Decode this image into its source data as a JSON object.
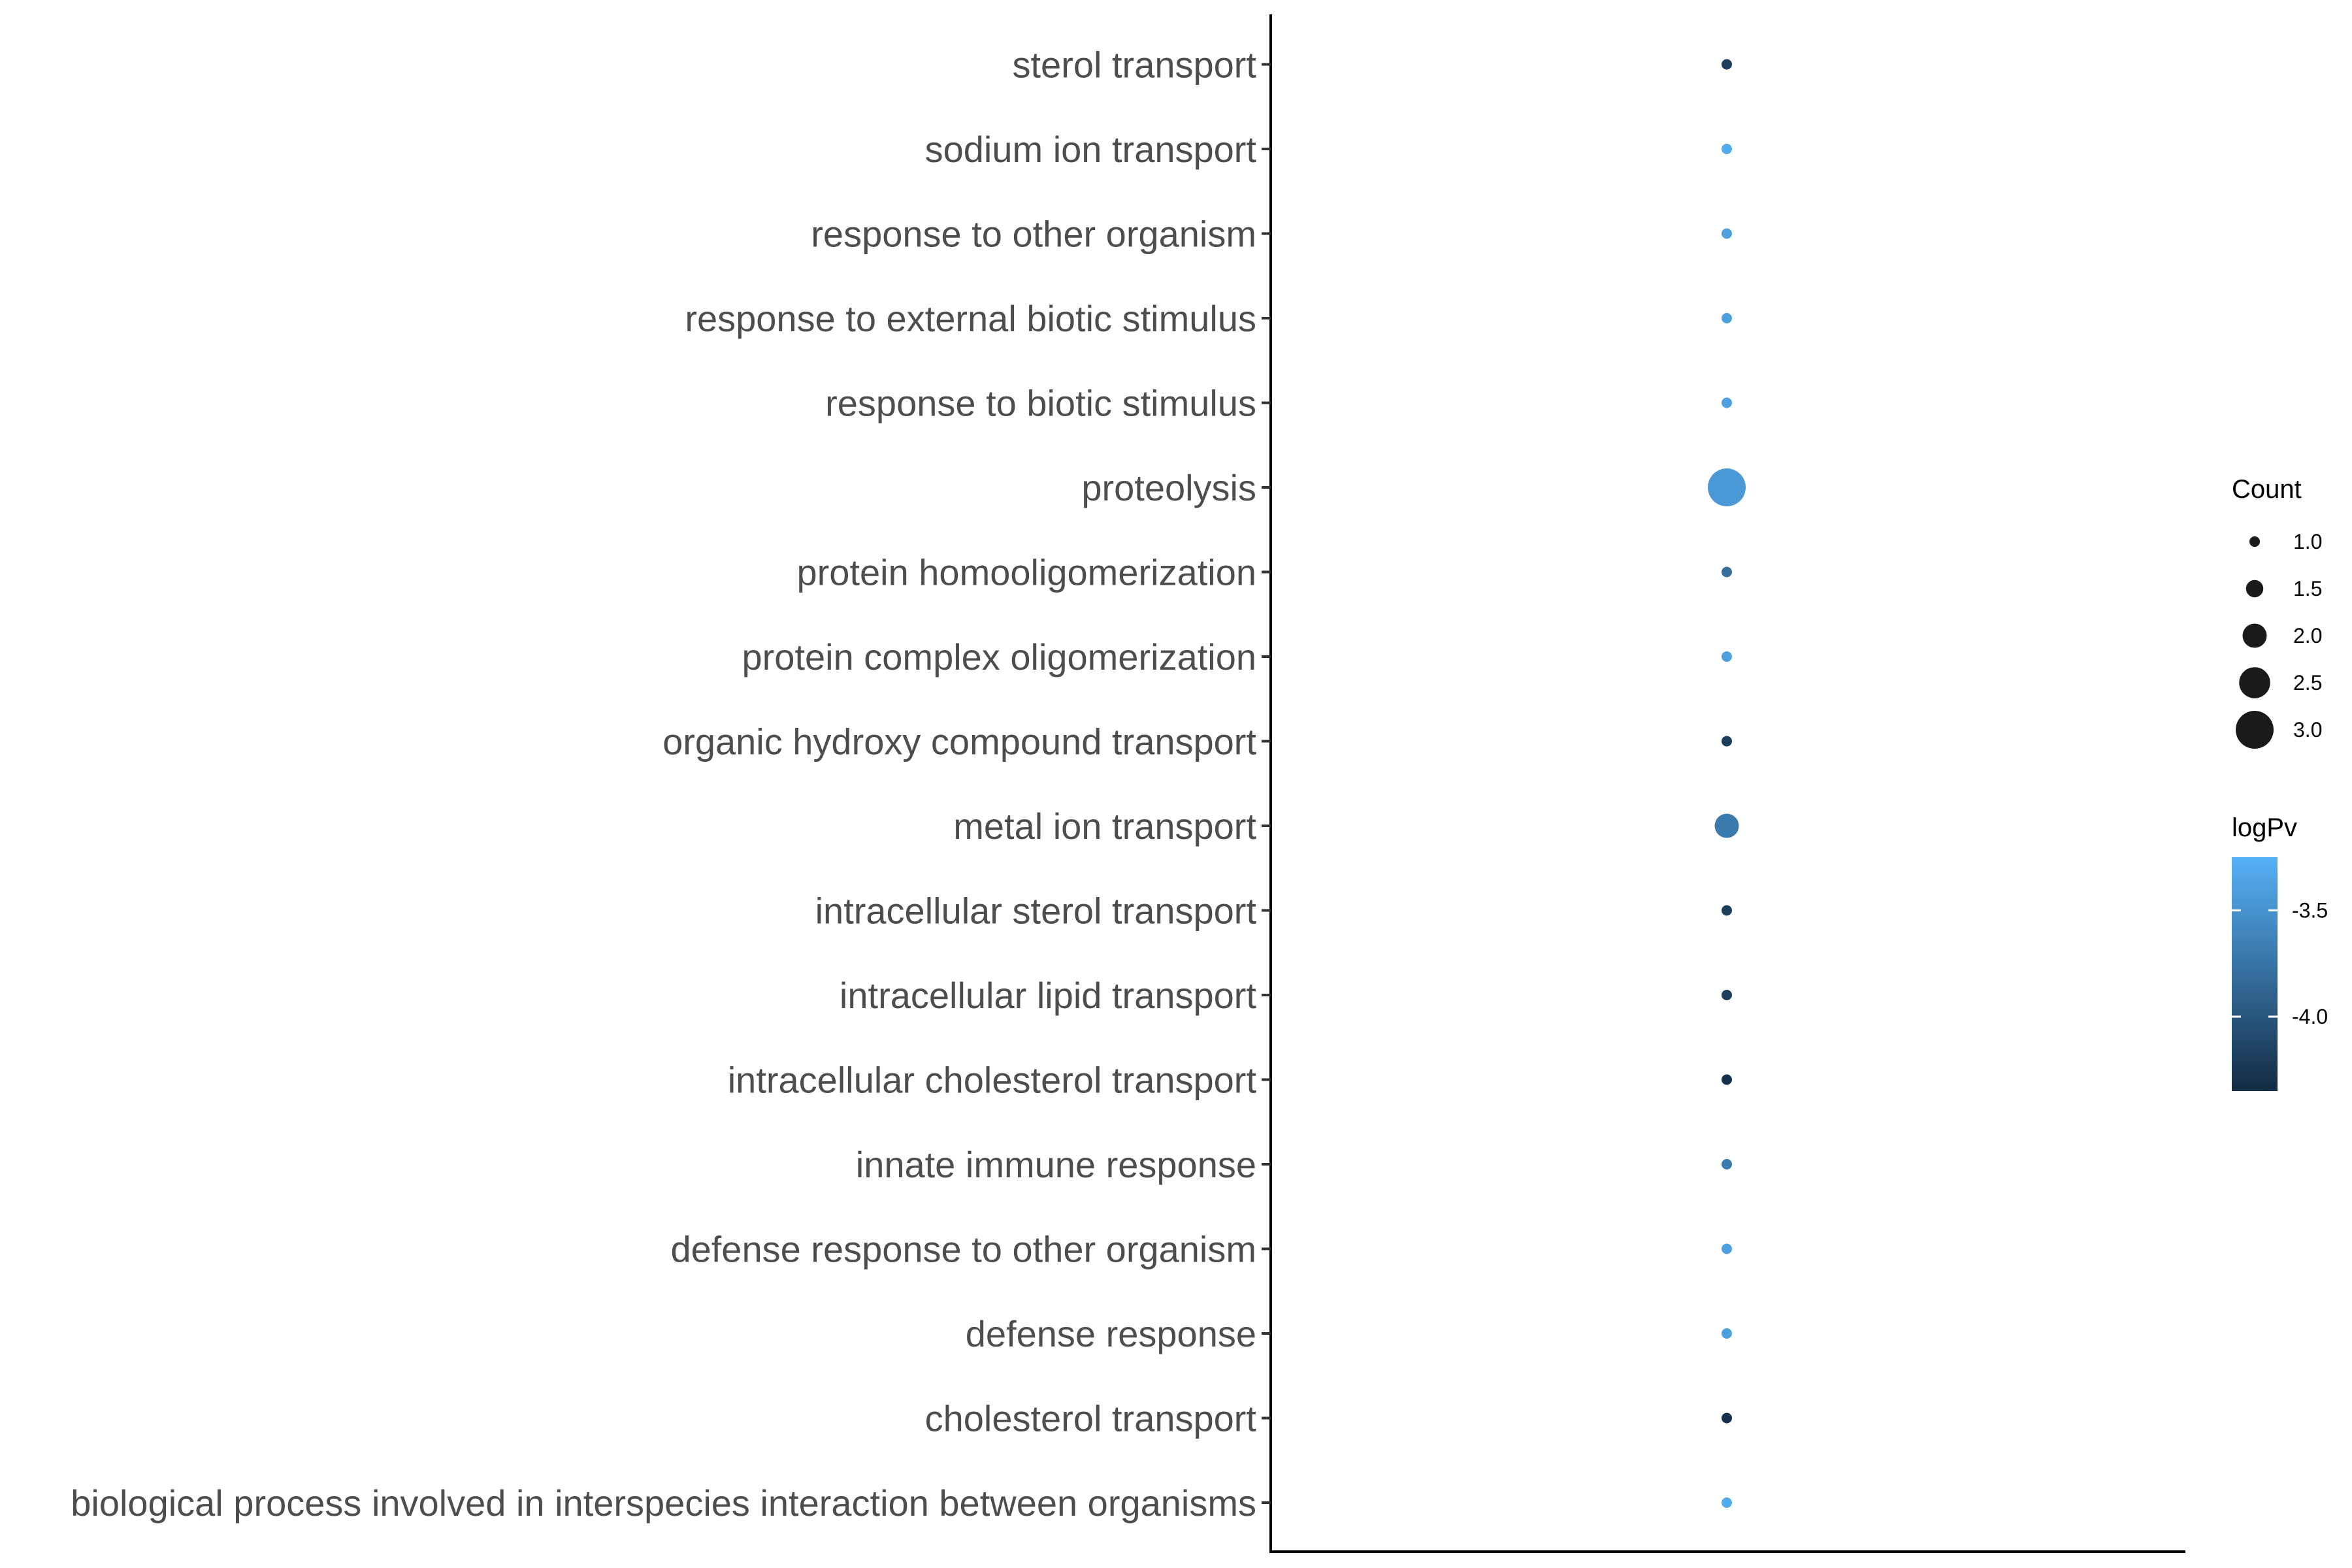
{
  "chart_data": {
    "type": "scatter",
    "categories": [
      "biological process involved in interspecies interaction between organisms",
      "cholesterol transport",
      "defense response",
      "defense response to other organism",
      "innate immune response",
      "intracellular cholesterol transport",
      "intracellular lipid transport",
      "intracellular sterol transport",
      "metal ion transport",
      "organic hydroxy compound transport",
      "protein complex oligomerization",
      "protein homooligomerization",
      "proteolysis",
      "response to biotic stimulus",
      "response to external biotic stimulus",
      "response to other organism",
      "sodium ion transport",
      "sterol transport"
    ],
    "count": [
      1,
      1,
      1,
      1,
      1,
      1,
      1,
      1,
      2,
      1,
      1,
      1,
      3,
      1,
      1,
      1,
      1,
      1
    ],
    "logPv": [
      -3.3,
      -4.3,
      -3.4,
      -3.4,
      -3.7,
      -4.3,
      -4.2,
      -4.2,
      -3.7,
      -4.2,
      -3.4,
      -3.8,
      -3.45,
      -3.4,
      -3.4,
      -3.4,
      -3.3,
      -4.2
    ],
    "legend_size": {
      "title": "Count",
      "values": [
        1.0,
        1.5,
        2.0,
        2.5,
        3.0
      ],
      "labels": [
        "1.0",
        "1.5",
        "2.0",
        "2.5",
        "3.0"
      ]
    },
    "legend_color": {
      "title": "logPv",
      "range": [
        -4.35,
        -3.25
      ],
      "ticks": [
        -3.5,
        -4.0
      ],
      "tick_labels": [
        "-3.5",
        "-4.0"
      ],
      "low_color": "#132b43",
      "high_color": "#56b1f7"
    },
    "legend_placement": "right",
    "grid": false
  }
}
